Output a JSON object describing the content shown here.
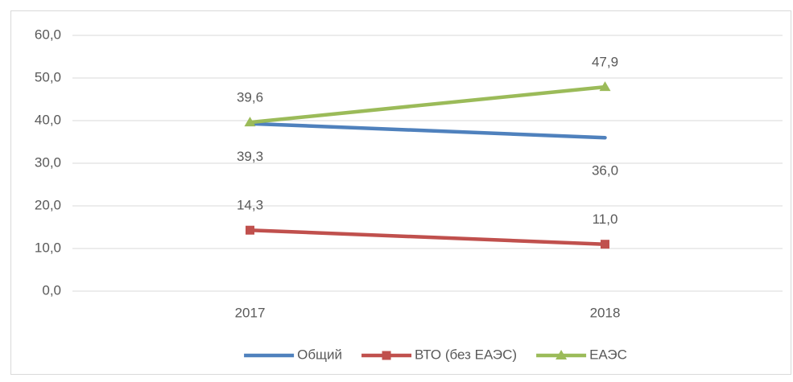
{
  "chart_data": {
    "type": "line",
    "categories": [
      "2017",
      "2018"
    ],
    "series": [
      {
        "name": "Общий",
        "color": "#4f81bd",
        "marker": "none",
        "label_position": "below",
        "values": [
          39.3,
          36.0
        ],
        "value_labels": [
          "39,3",
          "36,0"
        ]
      },
      {
        "name": "ВТО (без ЕАЭС)",
        "color": "#c0504d",
        "marker": "square",
        "label_position": "above",
        "values": [
          14.3,
          11.0
        ],
        "value_labels": [
          "14,3",
          "11,0"
        ]
      },
      {
        "name": "ЕАЭС",
        "color": "#9bbb59",
        "marker": "triangle",
        "label_position": "above",
        "values": [
          39.6,
          47.9
        ],
        "value_labels": [
          "39,6",
          "47,9"
        ]
      }
    ],
    "ylim": [
      0,
      60
    ],
    "yticks": [
      {
        "value": 0,
        "label": "0,0"
      },
      {
        "value": 10,
        "label": "10,0"
      },
      {
        "value": 20,
        "label": "20,0"
      },
      {
        "value": 30,
        "label": "30,0"
      },
      {
        "value": 40,
        "label": "40,0"
      },
      {
        "value": 50,
        "label": "50,0"
      },
      {
        "value": 60,
        "label": "60,0"
      }
    ],
    "grid": true,
    "legend": "bottom"
  }
}
